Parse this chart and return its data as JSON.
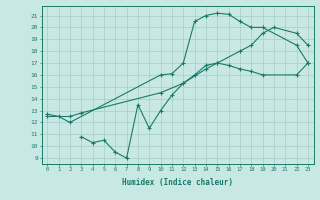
{
  "line1_x": [
    0,
    1,
    2,
    10,
    11,
    12,
    13,
    14,
    15,
    16,
    17,
    18,
    19,
    22,
    23
  ],
  "line1_y": [
    12.7,
    12.5,
    12.0,
    16.0,
    16.1,
    17.0,
    20.5,
    21.0,
    21.2,
    21.1,
    20.5,
    20.0,
    20.0,
    18.5,
    17.0
  ],
  "line2_x": [
    0,
    2,
    3,
    10,
    12,
    14,
    15,
    17,
    18,
    19,
    20,
    22,
    23
  ],
  "line2_y": [
    12.5,
    12.5,
    12.8,
    14.5,
    15.3,
    16.5,
    17.0,
    18.0,
    18.5,
    19.5,
    20.0,
    19.5,
    18.5
  ],
  "line3_x": [
    3,
    4,
    5,
    6,
    7,
    8,
    9,
    10,
    11,
    12,
    13,
    14,
    15,
    16,
    17,
    18,
    19,
    22,
    23
  ],
  "line3_y": [
    10.8,
    10.3,
    10.5,
    9.5,
    9.0,
    13.5,
    11.5,
    13.0,
    14.3,
    15.3,
    16.0,
    16.8,
    17.0,
    16.8,
    16.5,
    16.3,
    16.0,
    16.0,
    17.0
  ],
  "color": "#1a7a6a",
  "bg_color": "#c8e8e4",
  "grid_color": "#a8ccc8",
  "xlim": [
    -0.5,
    23.5
  ],
  "ylim": [
    8.5,
    21.8
  ],
  "xticks": [
    0,
    1,
    2,
    3,
    4,
    5,
    6,
    7,
    8,
    9,
    10,
    11,
    12,
    13,
    14,
    15,
    16,
    17,
    18,
    19,
    20,
    21,
    22,
    23
  ],
  "yticks": [
    9,
    10,
    11,
    12,
    13,
    14,
    15,
    16,
    17,
    18,
    19,
    20,
    21
  ],
  "xlabel": "Humidex (Indice chaleur)",
  "title": ""
}
